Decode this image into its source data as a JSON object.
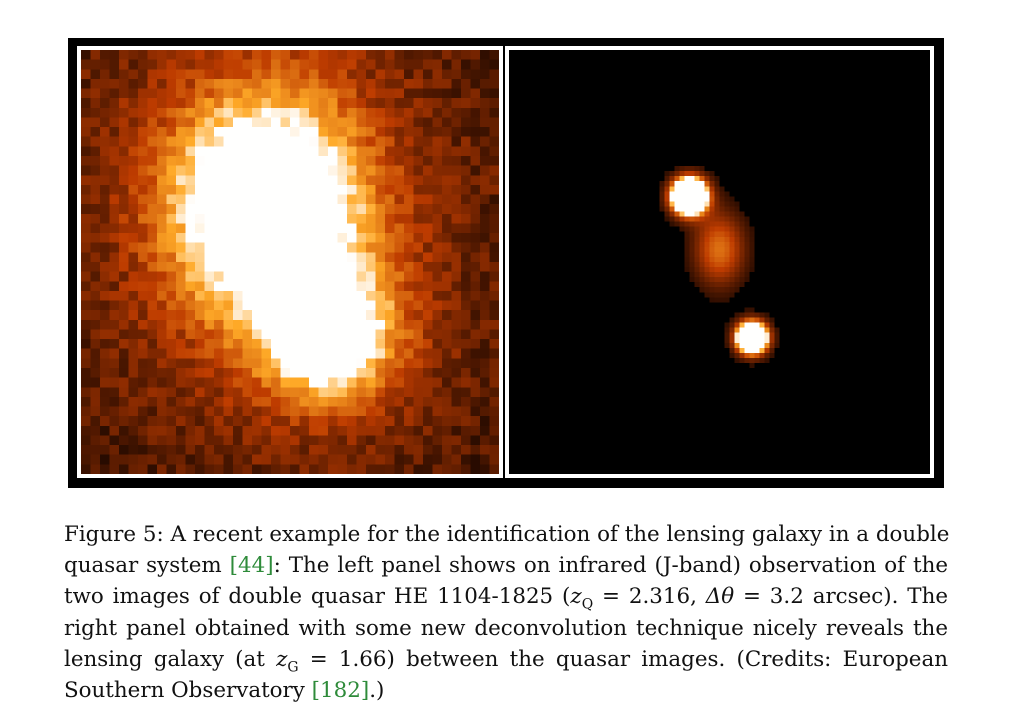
{
  "figure": {
    "left_panel": {
      "desc_icon": "noisy-infrared-quasar-image",
      "colors": {
        "dark": "#1a0700",
        "mid": "#9a3a00",
        "bright": "#ff8a1a",
        "white": "#ffffff"
      }
    },
    "right_panel": {
      "desc_icon": "deconvolved-quasar-image",
      "colors": {
        "halo": "#c85a10",
        "core": "#ffffff"
      }
    }
  },
  "caption": {
    "l1_a": "Figure 5: A recent example for the identification of the lensing galaxy in a double",
    "l2_a": "quasar system ",
    "l2_cite": "[44]",
    "l2_b": ": The left panel shows on infrared (J-band) observation of the",
    "l3_a": "two images of double quasar HE 1104-1825 (",
    "l3_z": "z",
    "l3_zsub": "Q",
    "l3_b": " = 2.316, ",
    "l3_dtheta": "Δθ",
    "l3_c": " = 3.2 arcsec). The",
    "l4_a": "right panel obtained with some new deconvolution technique nicely reveals the",
    "l5_a": "lensing galaxy (at ",
    "l5_z": "z",
    "l5_zsub": "G",
    "l5_b": " = 1.66) between the quasar images. (Credits: European",
    "l6_a": "Southern Observatory ",
    "l6_cite": "[182]",
    "l6_b": ".)"
  }
}
